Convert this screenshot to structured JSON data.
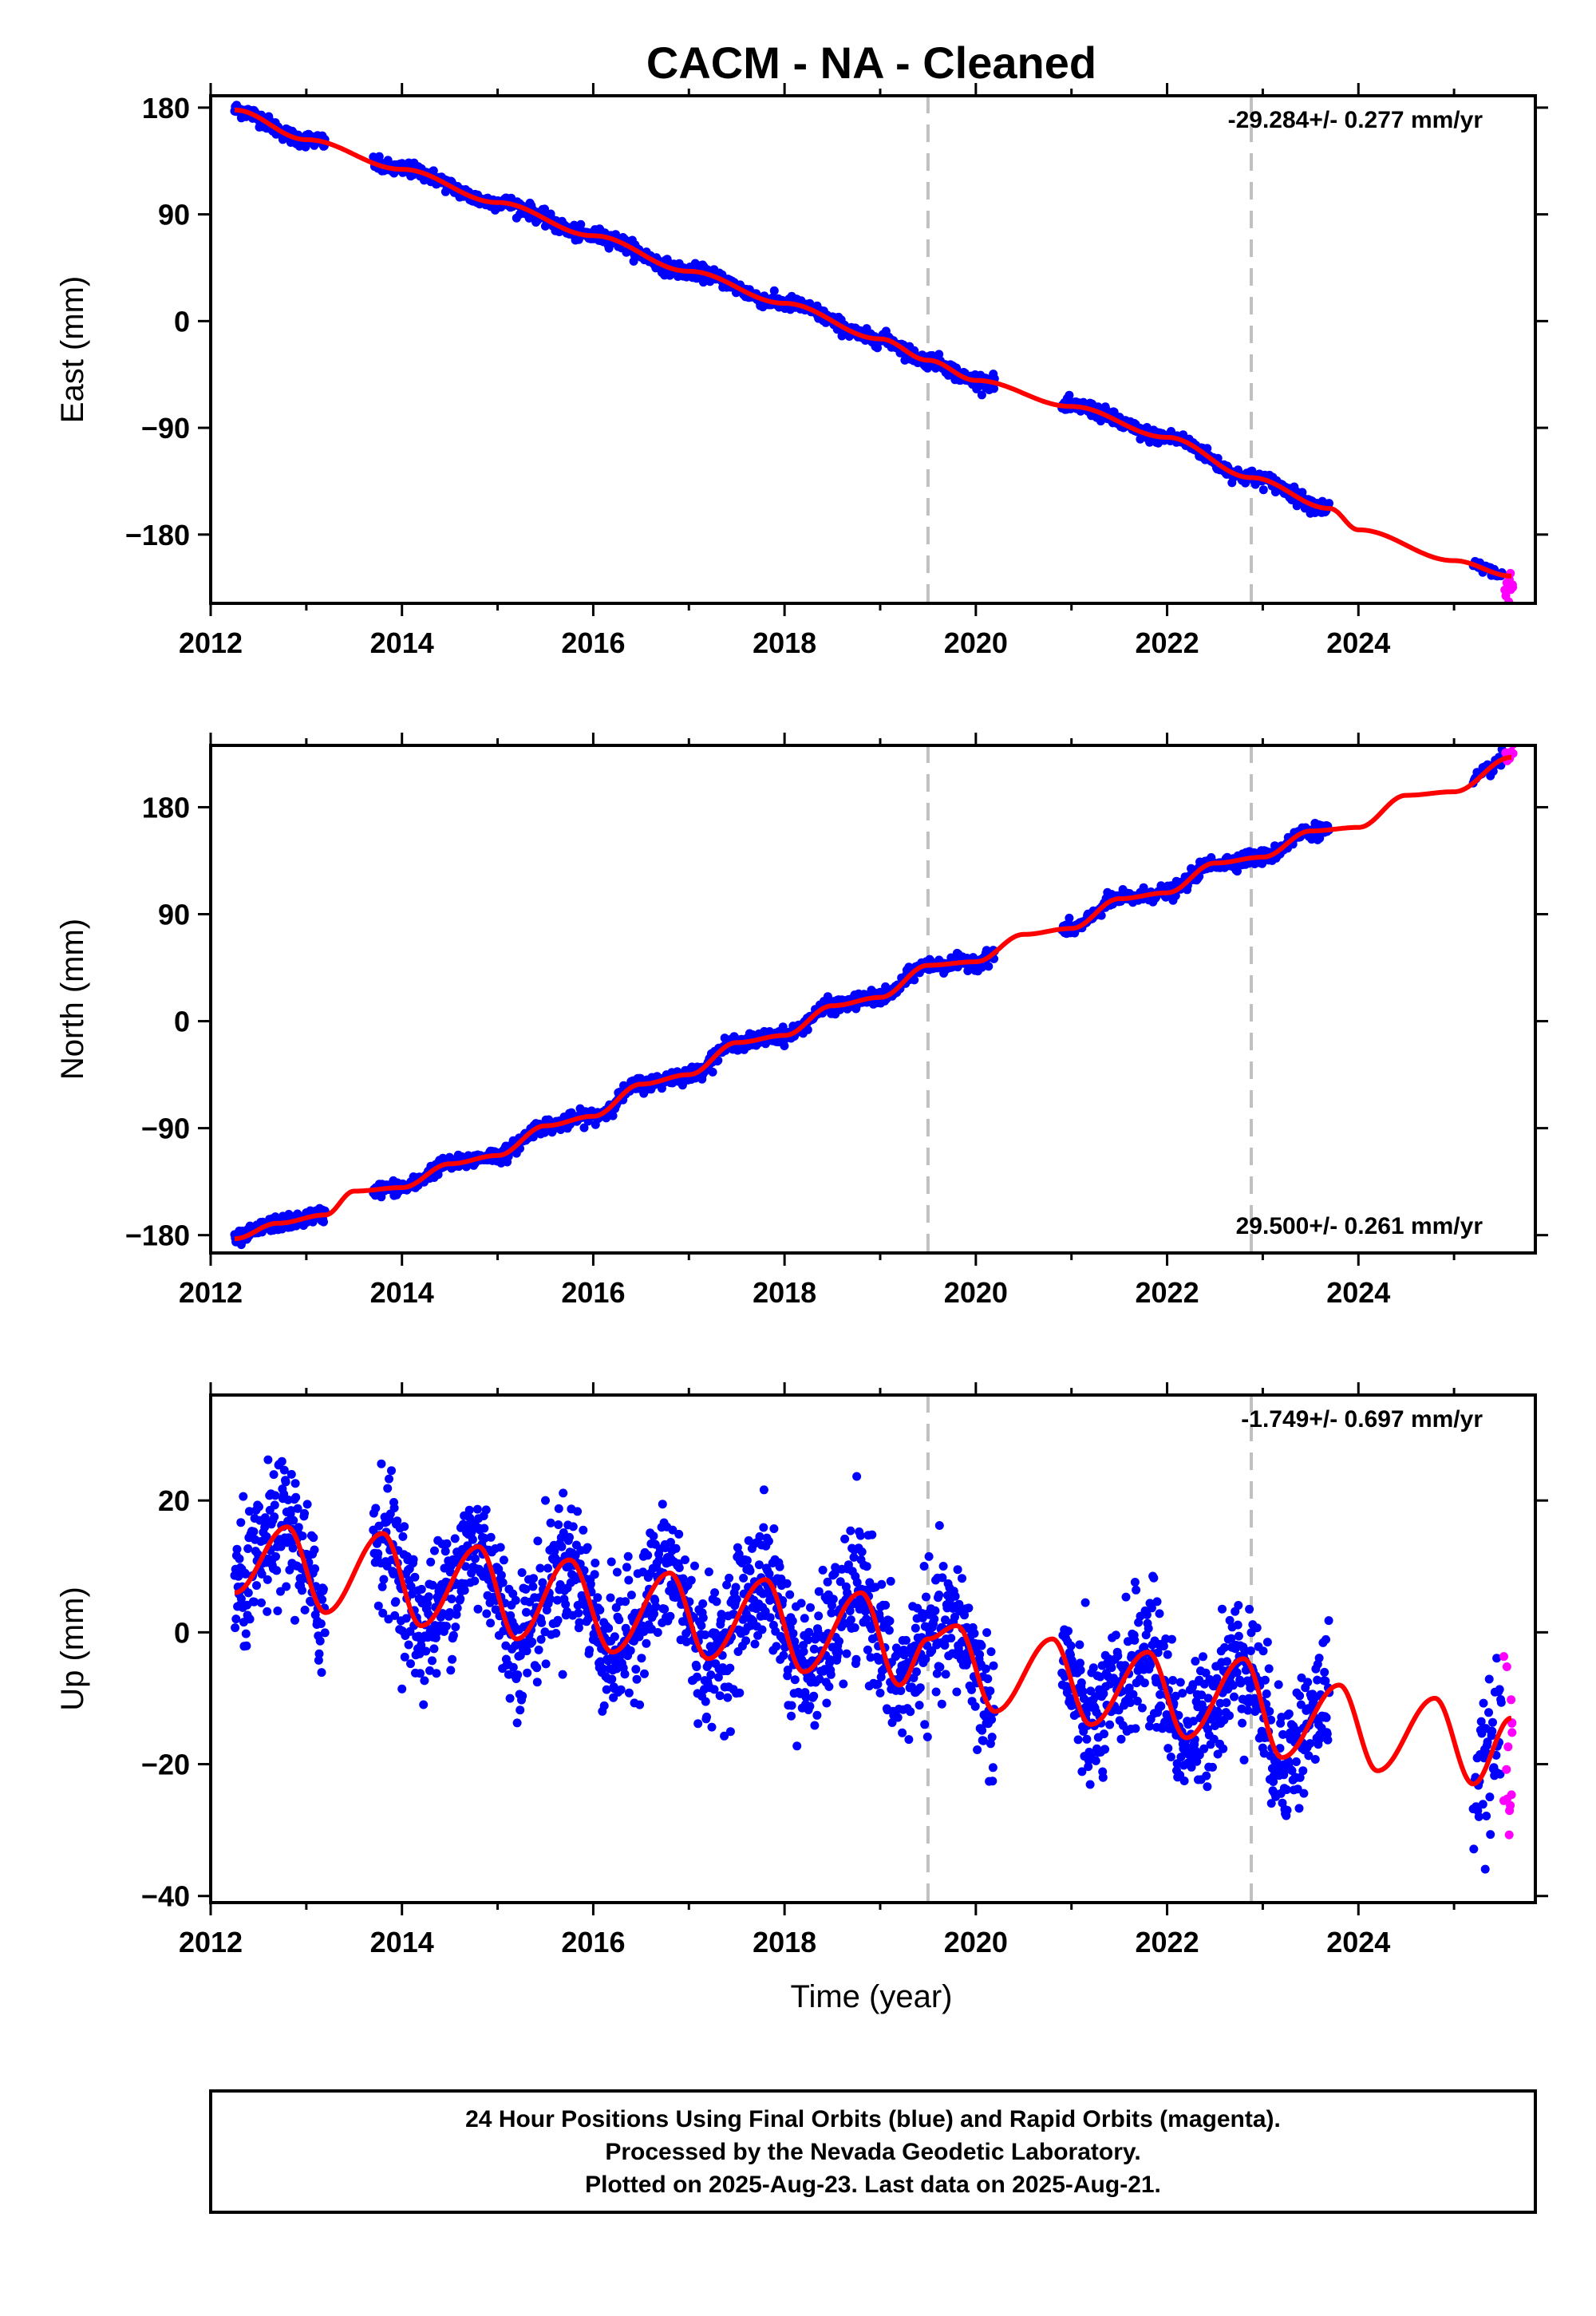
{
  "title": "CACM  - NA - Cleaned",
  "colors": {
    "final": "#0000ff",
    "rapid": "#ff00ff",
    "model": "#ff0000",
    "event_line": "#c0c0c0",
    "frame": "#000000"
  },
  "chart_data": [
    {
      "type": "scatter",
      "name": "east",
      "ylabel": "East (mm)",
      "xlim": [
        2012.0,
        2025.85
      ],
      "ylim": [
        -238,
        190
      ],
      "xticks": [
        2012,
        2014,
        2016,
        2018,
        2020,
        2022,
        2024
      ],
      "yticks": [
        180,
        90,
        0,
        -90,
        -180
      ],
      "ytick_labels": [
        "180",
        "90",
        "0",
        "−90",
        "−180"
      ],
      "rate_label": "-29.284+/- 0.277 mm/yr",
      "rate_position": "top-right",
      "event_lines": [
        2019.5,
        2022.88
      ],
      "model": {
        "x": [
          2012.25,
          2013,
          2014,
          2015,
          2016,
          2017,
          2018,
          2019,
          2019.5,
          2020,
          2021,
          2022,
          2022.88,
          2023.7,
          2024,
          2025,
          2025.6
        ],
        "y": [
          178,
          153,
          128,
          100,
          72,
          42,
          15,
          -15,
          -33,
          -50,
          -72,
          -98,
          -132,
          -158,
          -176,
          -202,
          -215
        ]
      },
      "segments": [
        {
          "start": 2012.25,
          "end": 2013.2,
          "step": 0.007
        },
        {
          "start": 2013.7,
          "end": 2020.2,
          "step": 0.007
        },
        {
          "start": 2020.9,
          "end": 2023.7,
          "step": 0.007
        },
        {
          "start": 2025.2,
          "end": 2025.5,
          "step": 0.01
        }
      ],
      "scatter_noise": 3,
      "rapid": {
        "start": 2025.52,
        "end": 2025.62,
        "count": 10,
        "noise": 5,
        "offset": -8
      }
    },
    {
      "type": "scatter",
      "name": "north",
      "ylabel": "North (mm)",
      "xlim": [
        2012.0,
        2025.85
      ],
      "ylim": [
        -195,
        232
      ],
      "xticks": [
        2012,
        2014,
        2016,
        2018,
        2020,
        2022,
        2024
      ],
      "yticks": [
        180,
        90,
        0,
        -90,
        -180
      ],
      "ytick_labels": [
        "180",
        "90",
        "0",
        "−90",
        "−180"
      ],
      "rate_label": "29.500+/- 0.261 mm/yr",
      "rate_position": "bottom-right",
      "event_lines": [
        2019.5,
        2022.88
      ],
      "model": {
        "x": [
          2012.25,
          2012.7,
          2013.2,
          2013.5,
          2014,
          2014.5,
          2015,
          2015.5,
          2016,
          2016.5,
          2017,
          2017.5,
          2018,
          2018.5,
          2019,
          2019.5,
          2020,
          2020.5,
          2021,
          2021.5,
          2022,
          2022.5,
          2023,
          2023.5,
          2024,
          2024.5,
          2025,
          2025.6
        ],
        "y": [
          -183,
          -170,
          -163,
          -143,
          -140,
          -120,
          -113,
          -88,
          -80,
          -53,
          -45,
          -18,
          -12,
          13,
          20,
          47,
          50,
          73,
          78,
          103,
          108,
          133,
          138,
          160,
          163,
          190,
          193,
          222
        ]
      },
      "segments": [
        {
          "start": 2012.25,
          "end": 2013.2,
          "step": 0.007
        },
        {
          "start": 2013.7,
          "end": 2020.2,
          "step": 0.007
        },
        {
          "start": 2020.9,
          "end": 2023.7,
          "step": 0.007
        },
        {
          "start": 2025.2,
          "end": 2025.5,
          "step": 0.01
        }
      ],
      "scatter_noise": 3,
      "rapid": {
        "start": 2025.52,
        "end": 2025.62,
        "count": 10,
        "noise": 4,
        "offset": 3
      }
    },
    {
      "type": "scatter",
      "name": "up",
      "ylabel": "Up (mm)",
      "xlim": [
        2012.0,
        2025.85
      ],
      "ylim": [
        -41,
        36
      ],
      "xticks": [
        2012,
        2014,
        2016,
        2018,
        2020,
        2022,
        2024
      ],
      "yticks": [
        20,
        0,
        -20,
        -40
      ],
      "ytick_labels": [
        "20",
        "0",
        "−20",
        "−40"
      ],
      "rate_label": "-1.749+/- 0.697 mm/yr",
      "rate_position": "top-right",
      "event_lines": [
        2019.5,
        2022.88
      ],
      "model": {
        "x": [
          2012.25,
          2012.8,
          2013.2,
          2013.8,
          2014.2,
          2014.8,
          2015.2,
          2015.75,
          2016.2,
          2016.8,
          2017.2,
          2017.8,
          2018.2,
          2018.8,
          2019.2,
          2019.5,
          2019.8,
          2020.2,
          2020.8,
          2021.2,
          2021.8,
          2022.2,
          2022.8,
          2023.2,
          2023.8,
          2024.2,
          2024.8,
          2025.2,
          2025.6
        ],
        "y": [
          6,
          16,
          3,
          15,
          1,
          13,
          -1,
          11,
          -3,
          9,
          -4,
          8,
          -6,
          6,
          -8,
          -1,
          1,
          -12,
          -1,
          -14,
          -3,
          -16,
          -4,
          -19,
          -8,
          -21,
          -10,
          -23,
          -13
        ]
      },
      "segments": [
        {
          "start": 2012.25,
          "end": 2013.2,
          "step": 0.005
        },
        {
          "start": 2013.7,
          "end": 2020.2,
          "step": 0.005
        },
        {
          "start": 2020.9,
          "end": 2023.7,
          "step": 0.005
        },
        {
          "start": 2025.2,
          "end": 2025.5,
          "step": 0.006
        }
      ],
      "scatter_noise": 5,
      "rapid": {
        "start": 2025.52,
        "end": 2025.62,
        "count": 14,
        "noise": 10,
        "offset": -4
      }
    }
  ],
  "xlabel": "Time (year)",
  "footer": {
    "line1": "24 Hour Positions Using Final Orbits (blue) and Rapid Orbits (magenta).",
    "line2": "Processed by the Nevada Geodetic Laboratory.",
    "line3": "Plotted on 2025-Aug-23. Last data on 2025-Aug-21."
  }
}
